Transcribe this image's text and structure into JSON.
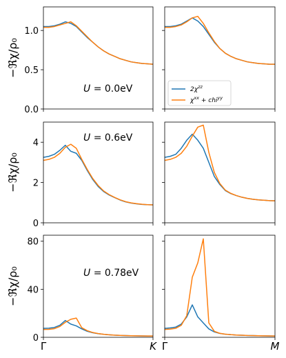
{
  "colors": {
    "zz": "#1f77b4",
    "xxyy": "#ff7f0e"
  },
  "legend": {
    "zz": "2χ^zz",
    "xxyy": "χ^xx + chi^yy"
  },
  "chart_data": {
    "type": "line",
    "ylabel": "−ℜχ/ρ₀",
    "x_ticks_left": [
      "Γ",
      "K"
    ],
    "x_ticks_right": [
      "Γ",
      "M"
    ],
    "x": [
      0,
      0.05,
      0.1,
      0.15,
      0.2,
      0.25,
      0.3,
      0.35,
      0.4,
      0.45,
      0.5,
      0.55,
      0.6,
      0.65,
      0.7,
      0.75,
      0.8,
      0.85,
      0.9,
      0.95,
      1.0
    ],
    "rows": [
      {
        "annotation": "U =  0.0eV",
        "ylim": [
          0,
          1.3
        ],
        "yticks": [
          "0.0",
          "0.5",
          "1.0"
        ],
        "ytick_values": [
          0,
          0.5,
          1.0
        ],
        "panels": [
          {
            "path": "Γ-K",
            "series": [
              {
                "name": "2χ^zz",
                "values": [
                  1.05,
                  1.05,
                  1.06,
                  1.08,
                  1.11,
                  1.09,
                  1.05,
                  0.98,
                  0.91,
                  0.85,
                  0.79,
                  0.74,
                  0.7,
                  0.67,
                  0.64,
                  0.62,
                  0.6,
                  0.59,
                  0.58,
                  0.575,
                  0.57
                ]
              },
              {
                "name": "χ^xx + chi^yy",
                "values": [
                  1.04,
                  1.04,
                  1.05,
                  1.07,
                  1.09,
                  1.11,
                  1.06,
                  0.99,
                  0.92,
                  0.85,
                  0.79,
                  0.74,
                  0.7,
                  0.67,
                  0.64,
                  0.62,
                  0.6,
                  0.59,
                  0.58,
                  0.575,
                  0.57
                ]
              }
            ]
          },
          {
            "path": "Γ-M",
            "series": [
              {
                "name": "2χ^zz",
                "values": [
                  1.05,
                  1.05,
                  1.06,
                  1.08,
                  1.12,
                  1.16,
                  1.12,
                  1.05,
                  0.95,
                  0.85,
                  0.77,
                  0.71,
                  0.67,
                  0.64,
                  0.62,
                  0.6,
                  0.59,
                  0.58,
                  0.575,
                  0.57,
                  0.57
                ]
              },
              {
                "name": "χ^xx + chi^yy",
                "values": [
                  1.04,
                  1.04,
                  1.05,
                  1.07,
                  1.11,
                  1.16,
                  1.18,
                  1.09,
                  0.97,
                  0.86,
                  0.77,
                  0.71,
                  0.67,
                  0.64,
                  0.62,
                  0.6,
                  0.59,
                  0.58,
                  0.575,
                  0.57,
                  0.57
                ]
              }
            ]
          }
        ]
      },
      {
        "annotation": "U =  0.6eV",
        "ylim": [
          0,
          5.0
        ],
        "yticks": [
          "0",
          "2",
          "4"
        ],
        "ytick_values": [
          0,
          2,
          4
        ],
        "panels": [
          {
            "path": "Γ-K",
            "series": [
              {
                "name": "2χ^zz",
                "values": [
                  3.25,
                  3.3,
                  3.4,
                  3.6,
                  3.85,
                  3.55,
                  3.45,
                  3.1,
                  2.6,
                  2.15,
                  1.8,
                  1.55,
                  1.38,
                  1.25,
                  1.13,
                  1.04,
                  0.98,
                  0.94,
                  0.91,
                  0.9,
                  0.89
                ]
              },
              {
                "name": "χ^xx + chi^yy",
                "values": [
                  3.1,
                  3.15,
                  3.25,
                  3.45,
                  3.75,
                  3.9,
                  3.7,
                  3.15,
                  2.65,
                  2.2,
                  1.85,
                  1.58,
                  1.4,
                  1.26,
                  1.14,
                  1.05,
                  0.99,
                  0.95,
                  0.92,
                  0.9,
                  0.89
                ]
              }
            ]
          },
          {
            "path": "Γ-M",
            "series": [
              {
                "name": "2χ^zz",
                "values": [
                  3.25,
                  3.3,
                  3.4,
                  3.7,
                  4.1,
                  4.4,
                  4.1,
                  3.7,
                  3.0,
                  2.3,
                  1.9,
                  1.6,
                  1.45,
                  1.35,
                  1.27,
                  1.21,
                  1.17,
                  1.14,
                  1.12,
                  1.1,
                  1.09
                ]
              },
              {
                "name": "χ^xx + chi^yy",
                "values": [
                  3.1,
                  3.15,
                  3.25,
                  3.45,
                  3.8,
                  4.3,
                  4.75,
                  4.85,
                  3.5,
                  2.5,
                  1.95,
                  1.62,
                  1.46,
                  1.35,
                  1.27,
                  1.21,
                  1.17,
                  1.14,
                  1.12,
                  1.1,
                  1.09
                ]
              }
            ]
          }
        ]
      },
      {
        "annotation": "U =  0.78eV",
        "ylim": [
          0,
          85
        ],
        "yticks": [
          "0",
          "40",
          "80"
        ],
        "ytick_values": [
          0,
          40,
          80
        ],
        "panels": [
          {
            "path": "Γ-K",
            "series": [
              {
                "name": "2χ^zz",
                "values": [
                  7.5,
                  7.6,
                  8.2,
                  10,
                  14,
                  11,
                  9.5,
                  7,
                  5,
                  3.8,
                  3,
                  2.5,
                  2.1,
                  1.8,
                  1.6,
                  1.4,
                  1.3,
                  1.2,
                  1.15,
                  1.1,
                  1.1
                ]
              },
              {
                "name": "χ^xx + chi^yy",
                "values": [
                  6.5,
                  6.6,
                  7.2,
                  9,
                  12.5,
                  15,
                  16,
                  8,
                  5.5,
                  4,
                  3.1,
                  2.5,
                  2.1,
                  1.8,
                  1.6,
                  1.4,
                  1.3,
                  1.2,
                  1.15,
                  1.1,
                  1.1
                ]
              }
            ]
          },
          {
            "path": "Γ-M",
            "series": [
              {
                "name": "2χ^zz",
                "values": [
                  7.5,
                  7.8,
                  8.5,
                  11,
                  17,
                  27,
                  17,
                  12,
                  7,
                  4.5,
                  3.2,
                  2.6,
                  2.2,
                  1.9,
                  1.7,
                  1.5,
                  1.4,
                  1.3,
                  1.2,
                  1.15,
                  1.1
                ]
              },
              {
                "name": "χ^xx + chi^yy",
                "values": [
                  6.5,
                  6.8,
                  7.5,
                  10,
                  18,
                  50,
                  62,
                  82,
                  12,
                  5,
                  3.3,
                  2.6,
                  2.2,
                  1.9,
                  1.7,
                  1.5,
                  1.4,
                  1.3,
                  1.2,
                  1.15,
                  1.1
                ]
              }
            ]
          }
        ]
      }
    ]
  }
}
